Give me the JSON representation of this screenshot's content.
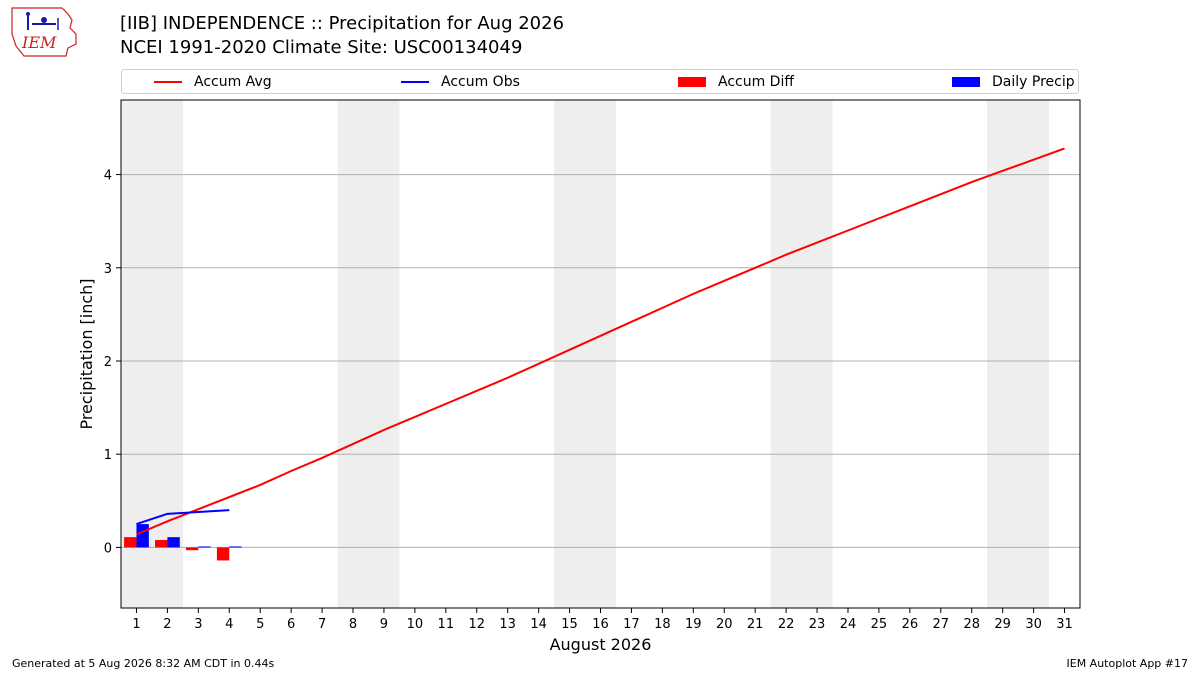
{
  "header": {
    "title_line1": "[IIB] INDEPENDENCE :: Precipitation for Aug 2026",
    "title_line2": "NCEI 1991-2020 Climate Site: USC00134049"
  },
  "logo": {
    "text": "IEM"
  },
  "footer": {
    "generated": "Generated at 5 Aug 2026 8:32 AM CDT in 0.44s",
    "app": "IEM Autoplot App #17"
  },
  "colors": {
    "accum_avg": "#ff0000",
    "accum_obs": "#0000ff",
    "accum_diff": "#ff0000",
    "daily_precip": "#0000ff",
    "weekend_shade": "#eeeeee",
    "grid": "#b0b0b0"
  },
  "chart_data": {
    "type": "bar",
    "xlabel": "August 2026",
    "ylabel": "Precipitation [inch]",
    "xlim": [
      0.5,
      31.5
    ],
    "ylim": [
      -0.65,
      4.8
    ],
    "yticks": [
      0,
      1,
      2,
      3,
      4
    ],
    "days": [
      1,
      2,
      3,
      4,
      5,
      6,
      7,
      8,
      9,
      10,
      11,
      12,
      13,
      14,
      15,
      16,
      17,
      18,
      19,
      20,
      21,
      22,
      23,
      24,
      25,
      26,
      27,
      28,
      29,
      30,
      31
    ],
    "weekend_spans": [
      [
        1,
        2
      ],
      [
        8,
        9
      ],
      [
        15,
        16
      ],
      [
        22,
        23
      ],
      [
        29,
        30
      ]
    ],
    "grid": "horizontal",
    "legend_position": "top",
    "legend": [
      "Accum Avg",
      "Accum Obs",
      "Accum Diff",
      "Daily Precip"
    ],
    "series": [
      {
        "name": "Accum Avg",
        "type": "line",
        "x": [
          1,
          2,
          3,
          4,
          5,
          6,
          7,
          8,
          9,
          10,
          11,
          12,
          13,
          14,
          15,
          16,
          17,
          18,
          19,
          20,
          21,
          22,
          23,
          24,
          25,
          26,
          27,
          28,
          29,
          30,
          31
        ],
        "values": [
          0.14,
          0.28,
          0.41,
          0.54,
          0.67,
          0.82,
          0.96,
          1.11,
          1.26,
          1.4,
          1.54,
          1.68,
          1.82,
          1.97,
          2.12,
          2.27,
          2.42,
          2.57,
          2.72,
          2.86,
          3.0,
          3.14,
          3.27,
          3.4,
          3.53,
          3.66,
          3.79,
          3.92,
          4.04,
          4.16,
          4.28
        ]
      },
      {
        "name": "Accum Obs",
        "type": "line",
        "x": [
          1,
          2,
          3,
          4
        ],
        "values": [
          0.25,
          0.36,
          0.38,
          0.4
        ]
      },
      {
        "name": "Accum Diff",
        "type": "bar",
        "x": [
          1,
          2,
          3,
          4
        ],
        "values": [
          0.11,
          0.08,
          -0.03,
          -0.14
        ]
      },
      {
        "name": "Daily Precip",
        "type": "bar",
        "x": [
          1,
          2,
          3,
          4
        ],
        "values": [
          0.25,
          0.11,
          0.01,
          0.01
        ]
      }
    ]
  }
}
